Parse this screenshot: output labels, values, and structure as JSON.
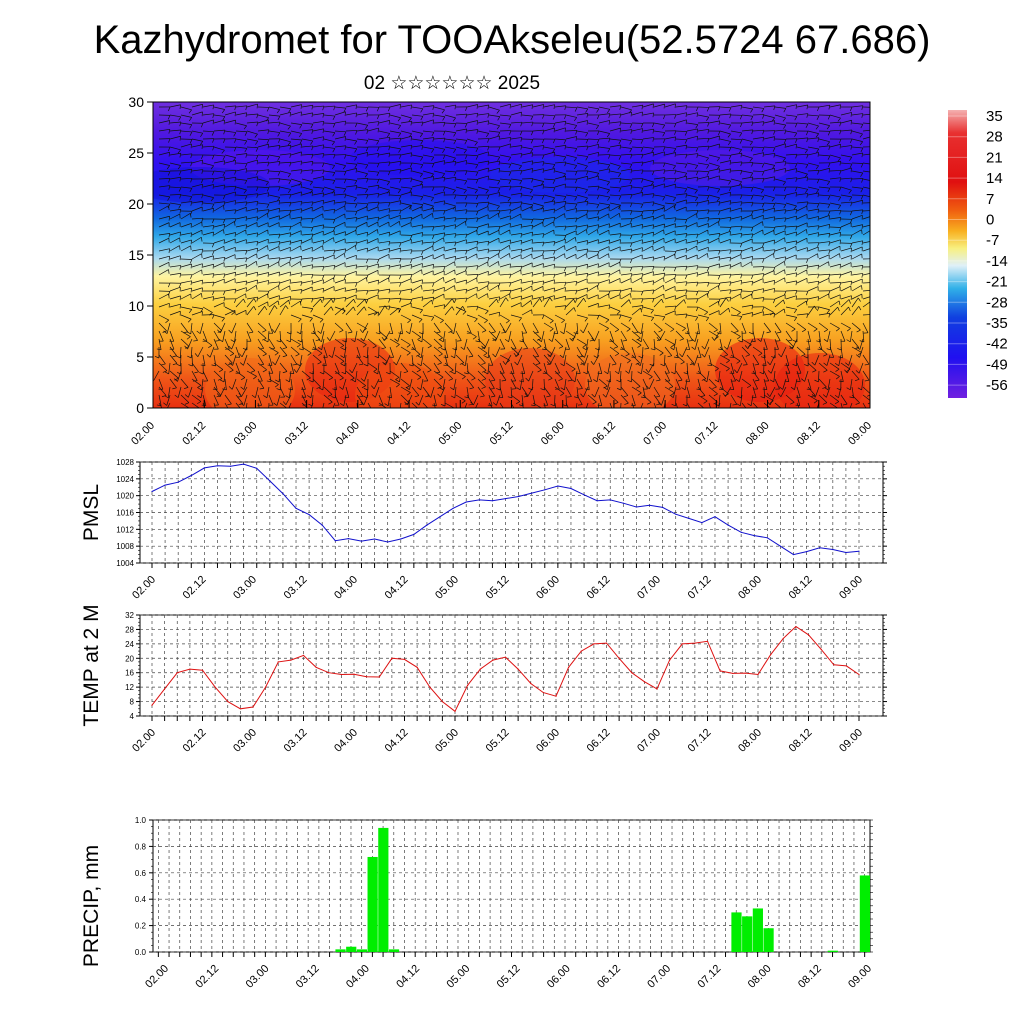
{
  "title": "Kazhydromet for TOOAkseleu(52.5724 67.686)",
  "subtitle": "02 ☆☆☆☆☆☆ 2025",
  "colors": {
    "pmsl_line": "#1010cc",
    "temp_line": "#dd1111",
    "precip_bar": "#00ee00",
    "colorbar_top": "#f4b0b0",
    "colorbar_warm": "#e01010",
    "colorbar_zero": "#f8f080",
    "colorbar_cold": "#10a0e0",
    "colorbar_bottom": "#7020e0"
  },
  "time_ticks": [
    "02.00",
    "02.12",
    "03.00",
    "03.12",
    "04.00",
    "04.12",
    "05.00",
    "05.12",
    "06.00",
    "06.12",
    "07.00",
    "07.12",
    "08.00",
    "08.12",
    "09.00"
  ],
  "chart_data": [
    {
      "type": "heatmap",
      "name": "cross-section",
      "x_ticks": [
        "02.00",
        "02.12",
        "03.00",
        "03.12",
        "04.00",
        "04.12",
        "05.00",
        "05.12",
        "06.00",
        "06.12",
        "07.00",
        "07.12",
        "08.00",
        "08.12",
        "09.00"
      ],
      "y_ticks": [
        "0",
        "5",
        "10",
        "15",
        "20",
        "25",
        "30"
      ],
      "ylim": [
        0,
        30
      ],
      "colorbar_labels": [
        "35",
        "28",
        "21",
        "14",
        "7",
        "0",
        "-7",
        "-14",
        "-21",
        "-28",
        "-35",
        "-42",
        "-49",
        "-56"
      ],
      "colorbar_range": [
        -60,
        35
      ]
    },
    {
      "type": "line",
      "ylabel": "PMSL",
      "ylim": [
        1004,
        1028
      ],
      "y_ticks": [
        "1028",
        "1024",
        "1020",
        "1016",
        "1012",
        "1008",
        "1004"
      ],
      "x_ticks": [
        "02.00",
        "02.12",
        "03.00",
        "03.12",
        "04.00",
        "04.12",
        "05.00",
        "05.12",
        "06.00",
        "06.12",
        "07.00",
        "07.12",
        "08.00",
        "08.12",
        "09.00"
      ],
      "values": [
        1021,
        1022.5,
        1023.2,
        1024.8,
        1026.6,
        1027.1,
        1027,
        1027.5,
        1026.5,
        1023.5,
        1020.5,
        1017,
        1015.5,
        1013,
        1009.3,
        1009.8,
        1009.2,
        1009.7,
        1009,
        1009.7,
        1010.8,
        1013,
        1015,
        1017,
        1018.5,
        1019,
        1018.8,
        1019.3,
        1019.8,
        1020.6,
        1021.4,
        1022.3,
        1021.7,
        1020.2,
        1018.8,
        1019,
        1018.2,
        1017.3,
        1017.7,
        1017.2,
        1015.6,
        1014.6,
        1013.6,
        1015,
        1013,
        1011.3,
        1010.5,
        1010,
        1008,
        1006,
        1006.7,
        1007.6,
        1007.2,
        1006.5,
        1006.8
      ]
    },
    {
      "type": "line",
      "ylabel": "TEMP at 2 M",
      "ylim": [
        4,
        32
      ],
      "y_ticks": [
        "32",
        "28",
        "24",
        "20",
        "16",
        "12",
        "8",
        "4"
      ],
      "x_ticks": [
        "02.00",
        "02.12",
        "03.00",
        "03.12",
        "04.00",
        "04.12",
        "05.00",
        "05.12",
        "06.00",
        "06.12",
        "07.00",
        "07.12",
        "08.00",
        "08.12",
        "09.00"
      ],
      "values": [
        7,
        11.5,
        16,
        17,
        16.7,
        12,
        8,
        6,
        6.5,
        12,
        19,
        19.5,
        20.8,
        17.5,
        16,
        15.5,
        15.6,
        14.9,
        14.8,
        20,
        19.7,
        17.5,
        12,
        8,
        5.3,
        12.5,
        17,
        19.5,
        20.3,
        17,
        13,
        10.5,
        9.5,
        17.5,
        22,
        24,
        24.2,
        20,
        16,
        13.5,
        11.5,
        19.5,
        24,
        24.2,
        24.7,
        16.5,
        15.8,
        15.9,
        15.5,
        21,
        25.5,
        28.8,
        26.5,
        22.5,
        18.2,
        17.9,
        15.5
      ]
    },
    {
      "type": "bar",
      "ylabel": "PRECIP, mm",
      "ylim": [
        0,
        1
      ],
      "y_ticks": [
        "1.0",
        "0.8",
        "0.6",
        "0.4",
        "0.2",
        "0.0"
      ],
      "x_ticks": [
        "02.00",
        "02.12",
        "03.00",
        "03.12",
        "04.00",
        "04.12",
        "05.00",
        "05.12",
        "06.00",
        "06.12",
        "07.00",
        "07.12",
        "08.00",
        "08.12",
        "09.00"
      ],
      "values": [
        0,
        0,
        0,
        0,
        0,
        0,
        0,
        0,
        0,
        0,
        0,
        0,
        0,
        0,
        0,
        0,
        0,
        0.02,
        0.04,
        0.02,
        0.72,
        0.94,
        0.02,
        0,
        0,
        0,
        0,
        0,
        0,
        0,
        0,
        0,
        0,
        0,
        0,
        0,
        0,
        0,
        0,
        0,
        0,
        0,
        0,
        0,
        0,
        0,
        0,
        0,
        0,
        0,
        0,
        0,
        0,
        0,
        0.3,
        0.27,
        0.33,
        0.18,
        0,
        0,
        0,
        0,
        0,
        0.01,
        0,
        0,
        0.58
      ]
    }
  ]
}
